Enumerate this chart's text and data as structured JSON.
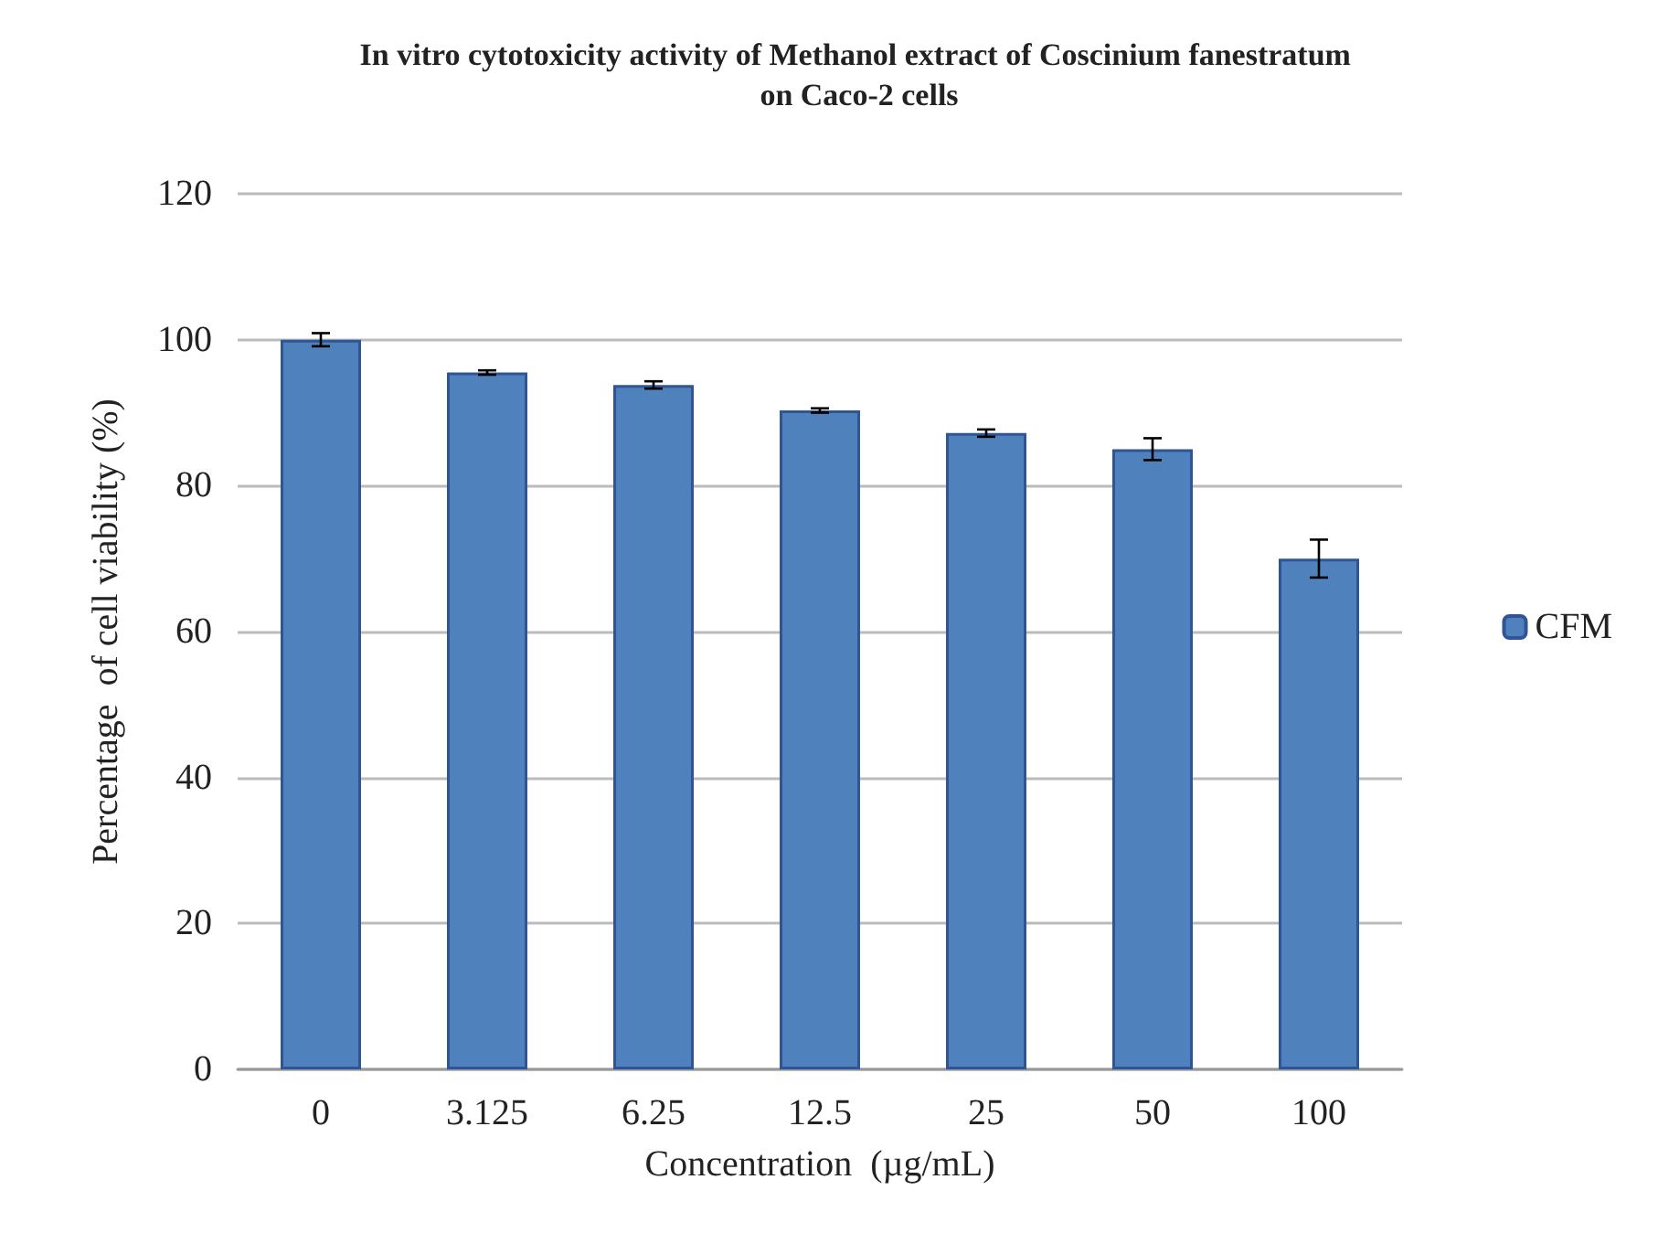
{
  "chart_data": {
    "type": "bar",
    "title": "In vitro cytotoxicity activity of Methanol extract of Coscinium fanestratum on Caco-2 cells",
    "xlabel": "Concentration  (µg/mL)",
    "ylabel": "Percentage  of cell viability (%)",
    "categories": [
      "0",
      "3.125",
      "6.25",
      "12.5",
      "25",
      "50",
      "100"
    ],
    "series": [
      {
        "name": "CFM",
        "color": "#4f81bd",
        "values": [
          100,
          95.5,
          93.8,
          90.3,
          87.2,
          85,
          70
        ],
        "errors": [
          0.9,
          0.3,
          0.5,
          0.3,
          0.5,
          1.5,
          2.6
        ]
      }
    ],
    "ylim": [
      0,
      120
    ],
    "yticks": [
      0,
      20,
      40,
      60,
      80,
      100,
      120
    ],
    "grid": "y",
    "legend": "right"
  }
}
